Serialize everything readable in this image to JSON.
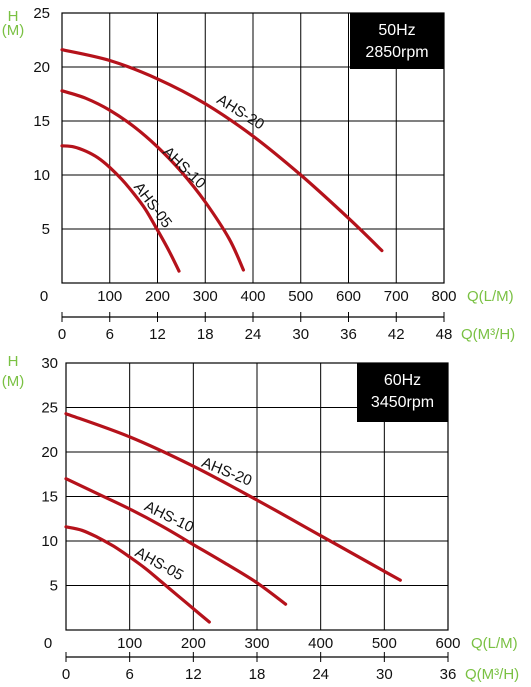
{
  "chart_data": [
    {
      "type": "line",
      "badge": [
        "50Hz",
        "2850rpm"
      ],
      "ylabel": [
        "H",
        "(M)"
      ],
      "xlabel_primary": "Q(L/M)",
      "xlabel_secondary": "Q(M³/H)",
      "xlim": [
        0,
        800
      ],
      "ylim": [
        0,
        25
      ],
      "yticks": [
        5,
        10,
        15,
        20,
        25
      ],
      "xticks_primary": [
        "0",
        "100",
        "200",
        "300",
        "400",
        "500",
        "600",
        "700",
        "800"
      ],
      "xticks_secondary": [
        "0",
        "6",
        "12",
        "18",
        "24",
        "30",
        "36",
        "42",
        "48"
      ],
      "grid": true,
      "series": [
        {
          "name": "AHS-20",
          "color": "#b5121b",
          "x": [
            0,
            100,
            200,
            300,
            400,
            500,
            600,
            670
          ],
          "y": [
            21.6,
            20.6,
            18.9,
            16.6,
            13.6,
            10.0,
            6.0,
            3.0
          ]
        },
        {
          "name": "AHS-10",
          "color": "#b5121b",
          "x": [
            0,
            50,
            100,
            150,
            200,
            250,
            300,
            350,
            380
          ],
          "y": [
            17.8,
            17.1,
            16.0,
            14.5,
            12.6,
            10.3,
            7.5,
            4.1,
            1.2
          ]
        },
        {
          "name": "AHS-05",
          "color": "#b5121b",
          "x": [
            0,
            25,
            50,
            75,
            100,
            125,
            150,
            175,
            200,
            225,
            245
          ],
          "y": [
            12.7,
            12.6,
            12.2,
            11.6,
            10.7,
            9.6,
            8.3,
            6.8,
            4.9,
            2.9,
            1.1
          ]
        }
      ]
    },
    {
      "type": "line",
      "badge": [
        "60Hz",
        "3450rpm"
      ],
      "ylabel": [
        "H",
        "(M)"
      ],
      "xlabel_primary": "Q(L/M)",
      "xlabel_secondary": "Q(M³/H)",
      "xlim": [
        0,
        600
      ],
      "ylim": [
        0,
        30
      ],
      "yticks": [
        5,
        10,
        15,
        20,
        25,
        30
      ],
      "xticks_primary": [
        "0",
        "100",
        "200",
        "300",
        "400",
        "500",
        "600"
      ],
      "xticks_secondary": [
        "0",
        "6",
        "12",
        "18",
        "24",
        "30",
        "36"
      ],
      "grid": true,
      "series": [
        {
          "name": "AHS-20",
          "color": "#b5121b",
          "x": [
            0,
            100,
            200,
            300,
            400,
            500,
            525
          ],
          "y": [
            24.3,
            21.7,
            18.4,
            14.6,
            10.6,
            6.6,
            5.6
          ]
        },
        {
          "name": "AHS-10",
          "color": "#b5121b",
          "x": [
            0,
            50,
            100,
            150,
            200,
            250,
            300,
            345
          ],
          "y": [
            17.0,
            15.3,
            13.6,
            11.7,
            9.6,
            7.5,
            5.3,
            2.9
          ]
        },
        {
          "name": "AHS-05",
          "color": "#b5121b",
          "x": [
            0,
            25,
            50,
            75,
            100,
            125,
            150,
            175,
            200,
            225
          ],
          "y": [
            11.6,
            11.2,
            10.4,
            9.4,
            8.2,
            6.9,
            5.4,
            3.9,
            2.4,
            0.9
          ]
        }
      ]
    }
  ]
}
